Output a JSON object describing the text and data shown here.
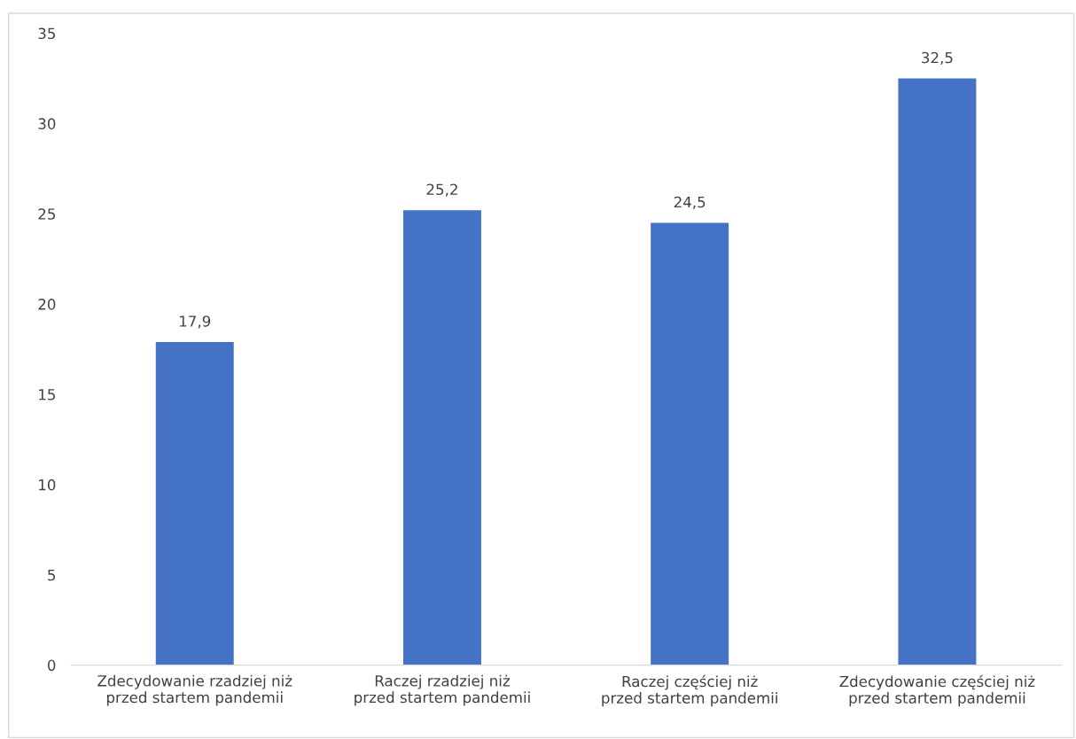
{
  "chart_data": {
    "type": "bar",
    "categories": [
      "Zdecydowanie rzadziej niż przed startem pandemii",
      "Raczej rzadziej niż przed startem pandemii",
      "Raczej częściej niż przed startem pandemii",
      "Zdecydowanie częściej niż przed startem pandemii"
    ],
    "values": [
      17.9,
      25.2,
      24.5,
      32.5
    ],
    "color": "#4472c4",
    "value_labels": [
      "17,9",
      "25,2",
      "24,5",
      "32,5"
    ],
    "ylim": [
      0,
      35
    ],
    "yticks": [
      0,
      5,
      10,
      15,
      20,
      25,
      30,
      35
    ],
    "grid": false,
    "legend": false
  }
}
